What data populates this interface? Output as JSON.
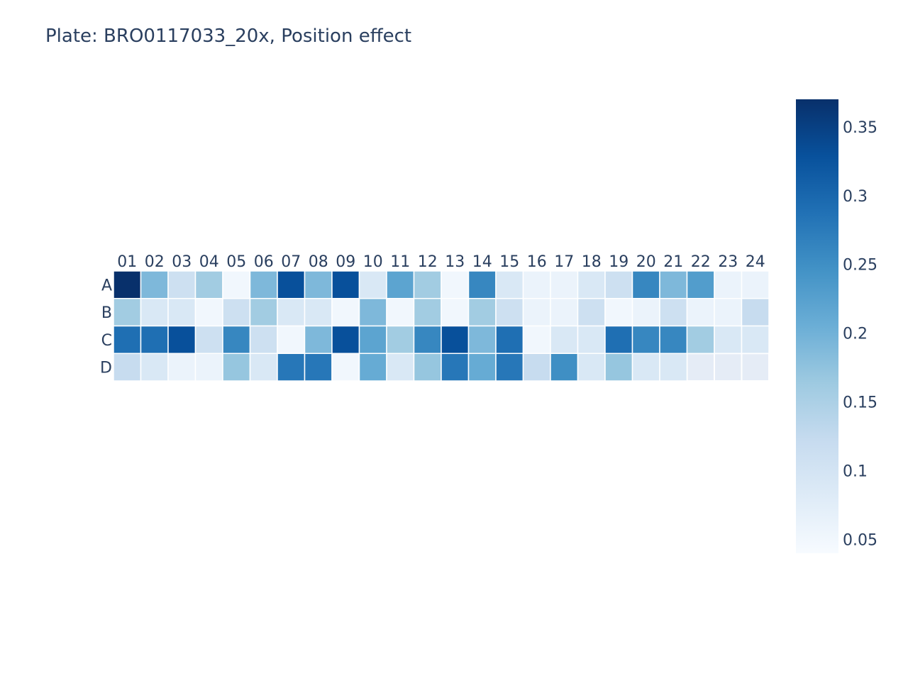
{
  "chart_data": {
    "type": "heatmap",
    "title": "Plate: BRO0117033_20x, Position effect",
    "x_categories": [
      "01",
      "02",
      "03",
      "04",
      "05",
      "06",
      "07",
      "08",
      "09",
      "10",
      "11",
      "12",
      "13",
      "14",
      "15",
      "16",
      "17",
      "18",
      "19",
      "20",
      "21",
      "22",
      "23",
      "24"
    ],
    "y_categories": [
      "A",
      "B",
      "C",
      "D"
    ],
    "x_axis_side": "top",
    "colorscale": "Blues",
    "colorscale_stops": [
      "#f7fbff",
      "#deebf7",
      "#c6dbef",
      "#9ecae1",
      "#6baed6",
      "#4292c6",
      "#2171b5",
      "#08519c",
      "#08306b"
    ],
    "zmin": 0.04,
    "zmax": 0.37,
    "colorbar_ticks": [
      {
        "value": 0.35,
        "label": "0.35"
      },
      {
        "value": 0.3,
        "label": "0.3"
      },
      {
        "value": 0.25,
        "label": "0.25"
      },
      {
        "value": 0.2,
        "label": "0.2"
      },
      {
        "value": 0.15,
        "label": "0.15"
      },
      {
        "value": 0.1,
        "label": "0.1"
      },
      {
        "value": 0.05,
        "label": "0.05"
      }
    ],
    "z": [
      [
        0.37,
        0.19,
        0.11,
        0.16,
        0.05,
        0.19,
        0.33,
        0.19,
        0.33,
        0.09,
        0.22,
        0.16,
        0.05,
        0.26,
        0.09,
        0.06,
        0.06,
        0.09,
        0.11,
        0.26,
        0.19,
        0.23,
        0.06,
        0.06
      ],
      [
        0.16,
        0.09,
        0.09,
        0.05,
        0.11,
        0.16,
        0.09,
        0.09,
        0.05,
        0.19,
        0.05,
        0.16,
        0.05,
        0.16,
        0.11,
        0.06,
        0.06,
        0.11,
        0.05,
        0.06,
        0.11,
        0.06,
        0.06,
        0.12
      ],
      [
        0.29,
        0.29,
        0.33,
        0.11,
        0.26,
        0.11,
        0.05,
        0.19,
        0.33,
        0.22,
        0.16,
        0.26,
        0.33,
        0.19,
        0.29,
        0.05,
        0.09,
        0.09,
        0.29,
        0.26,
        0.26,
        0.16,
        0.09,
        0.09
      ],
      [
        0.12,
        0.09,
        0.06,
        0.06,
        0.17,
        0.09,
        0.28,
        0.28,
        0.05,
        0.21,
        0.09,
        0.17,
        0.28,
        0.21,
        0.28,
        0.12,
        0.25,
        0.09,
        0.17,
        0.09,
        0.09,
        null,
        null,
        null
      ]
    ]
  }
}
